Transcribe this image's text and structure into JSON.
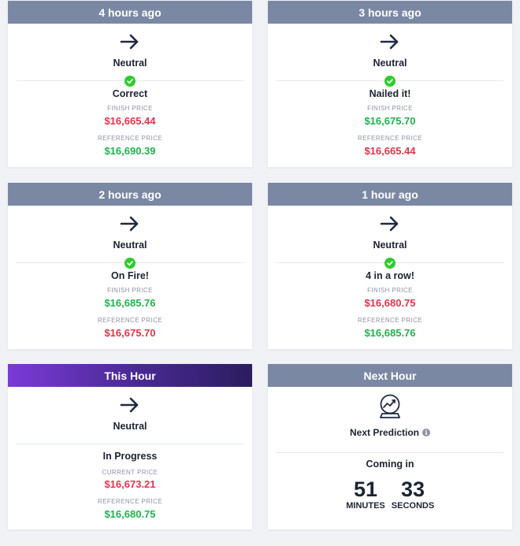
{
  "cards": [
    {
      "header": "4 hours ago",
      "direction": "Neutral",
      "result": "Correct",
      "finish_label": "FINISH PRICE",
      "finish_value": "$16,665.44",
      "reference_label": "REFERENCE PRICE",
      "reference_value": "$16,690.39"
    },
    {
      "header": "3 hours ago",
      "direction": "Neutral",
      "result": "Nailed it!",
      "finish_label": "FINISH PRICE",
      "finish_value": "$16,675.70",
      "reference_label": "REFERENCE PRICE",
      "reference_value": "$16,665.44"
    },
    {
      "header": "2 hours ago",
      "direction": "Neutral",
      "result": "On Fire!",
      "finish_label": "FINISH PRICE",
      "finish_value": "$16,685.76",
      "reference_label": "REFERENCE PRICE",
      "reference_value": "$16,675.70"
    },
    {
      "header": "1 hour ago",
      "direction": "Neutral",
      "result": "4 in a row!",
      "finish_label": "FINISH PRICE",
      "finish_value": "$16,680.75",
      "reference_label": "REFERENCE PRICE",
      "reference_value": "$16,685.76"
    }
  ],
  "current": {
    "header": "This Hour",
    "direction": "Neutral",
    "status": "In Progress",
    "current_label": "CURRENT PRICE",
    "current_value": "$16,673.21",
    "reference_label": "REFERENCE PRICE",
    "reference_value": "$16,680.75"
  },
  "next": {
    "header": "Next Hour",
    "prediction_label": "Next Prediction",
    "coming_label": "Coming in",
    "minutes_value": "51",
    "minutes_label": "MINUTES",
    "seconds_value": "33",
    "seconds_label": "SECONDS"
  },
  "colors": {
    "header": "#7b88a4",
    "up_green": "#1fb24d",
    "down_red": "#e0344c",
    "check": "#2ecc2e",
    "current_gradient_start": "#7b3ad6",
    "current_gradient_end": "#2b1d5e"
  },
  "icons": {
    "direction": "arrow-right-icon",
    "check": "check-circle-icon",
    "prediction": "crystal-ball-icon",
    "info": "info-icon"
  }
}
